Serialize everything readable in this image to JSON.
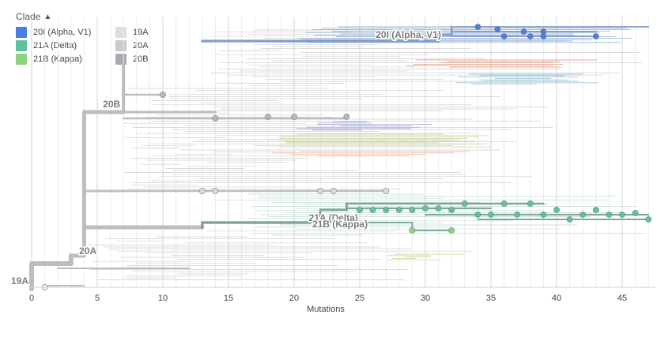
{
  "legend": {
    "title": "Clade",
    "items": [
      {
        "label": "20I (Alpha, V1)",
        "color": "#4a7fe0"
      },
      {
        "label": "21A (Delta)",
        "color": "#5cc39e"
      },
      {
        "label": "21B (Kappa)",
        "color": "#8ed27d"
      },
      {
        "label": "19A",
        "color": "#dcdee0"
      },
      {
        "label": "20A",
        "color": "#c8cacd"
      },
      {
        "label": "20B",
        "color": "#a7aaaf"
      }
    ]
  },
  "chart_data": {
    "type": "phylogenetic-tree",
    "xlabel": "Mutations",
    "xlim": [
      0,
      47.5
    ],
    "x_ticks": [
      0,
      5,
      10,
      15,
      20,
      25,
      30,
      35,
      40,
      45
    ],
    "grid": true,
    "legend_position": "top-left",
    "branch_labels": [
      {
        "text": "19A",
        "x": 0
      },
      {
        "text": "20A",
        "x": 3.5
      },
      {
        "text": "20B",
        "x": 7
      },
      {
        "text": "20I (Alpha, V1)",
        "x": 31
      },
      {
        "text": "21A (Delta)",
        "x": 23
      },
      {
        "text": "21B (Kappa)",
        "x": 23.5
      }
    ],
    "highlighted_tips": {
      "20I (Alpha, V1)": [
        34,
        35.5,
        36,
        37.5,
        38,
        39,
        39,
        43
      ],
      "21A (Delta)": [
        25,
        26,
        27,
        28,
        29,
        30,
        31,
        32,
        33,
        34,
        35,
        36,
        37,
        38,
        39,
        40,
        41,
        42,
        43,
        44,
        45,
        46,
        47
      ],
      "21B (Kappa)": [
        29,
        32
      ],
      "20B": [
        10,
        14,
        18,
        20,
        24
      ],
      "20A": [
        13,
        14,
        22,
        23,
        27
      ],
      "19A": [
        1
      ]
    }
  }
}
